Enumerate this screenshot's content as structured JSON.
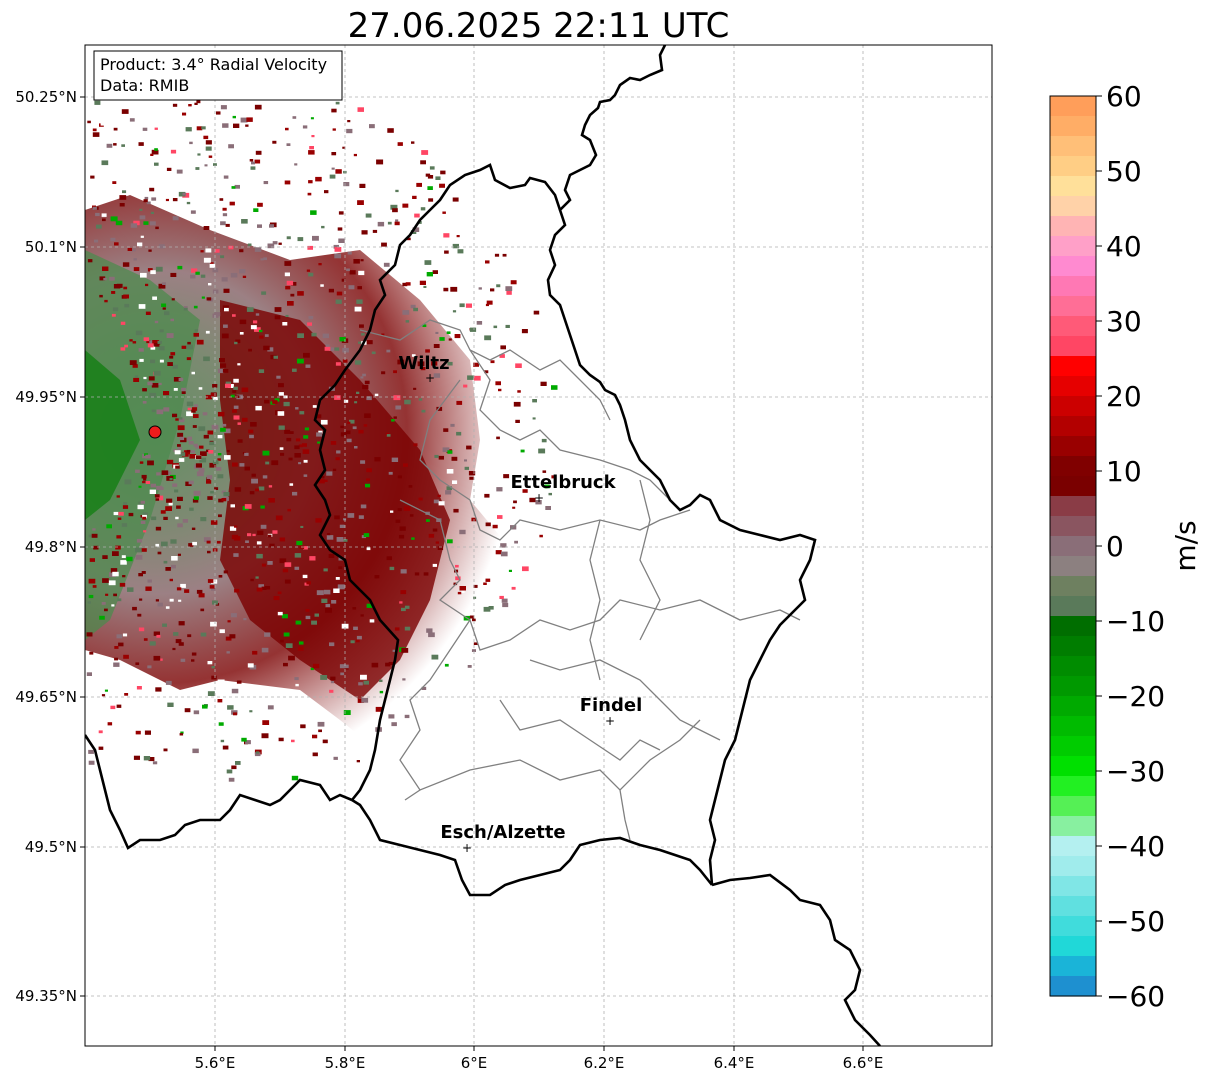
{
  "title": "27.06.2025 22:11 UTC",
  "info": {
    "product": "Product: 3.4° Radial Velocity",
    "data": "Data: RMIB"
  },
  "lat_labels": [
    "50.25°N",
    "50.1°N",
    "49.95°N",
    "49.8°N",
    "49.65°N",
    "49.5°N",
    "49.35°N"
  ],
  "lon_labels": [
    "5.6°E",
    "5.8°E",
    "6°E",
    "6.2°E",
    "6.4°E",
    "6.6°E"
  ],
  "cities": [
    {
      "name": "Wiltz"
    },
    {
      "name": "Ettelbruck"
    },
    {
      "name": "Findel"
    },
    {
      "name": "Esch/Alzette"
    }
  ],
  "colorbar": {
    "unit": "m/s",
    "min": -60,
    "max": 60,
    "tick_labels": [
      "60",
      "50",
      "40",
      "30",
      "20",
      "10",
      "0",
      "−10",
      "−20",
      "−30",
      "−40",
      "−50",
      "−60"
    ],
    "colors_top_to_bottom": [
      "#ff9e5a",
      "#ffad66",
      "#ffbf78",
      "#ffce85",
      "#ffe09a",
      "#ffd2a8",
      "#ffb4b4",
      "#ffa0c8",
      "#ff8ad0",
      "#ff78b4",
      "#ff6e96",
      "#ff5a78",
      "#ff4664",
      "#ff0000",
      "#e60000",
      "#cc0000",
      "#b30000",
      "#990000",
      "#800000",
      "#7a0000",
      "#8a3c46",
      "#8a5560",
      "#8a6e78",
      "#8c8080",
      "#6e8060",
      "#5a7a5a",
      "#006e00",
      "#007d00",
      "#008c00",
      "#009900",
      "#00aa00",
      "#00bb00",
      "#00cc00",
      "#00e000",
      "#22f022",
      "#55f055",
      "#88f0a0",
      "#b4f0f0",
      "#a0ecec",
      "#80e6e6",
      "#60e0e0",
      "#40dcdc",
      "#20d8d8",
      "#1ab4d8",
      "#1e90d0"
    ]
  },
  "colors": {
    "radar_site": "#ee1c1c",
    "border": "#000000",
    "canton": "#808080"
  }
}
